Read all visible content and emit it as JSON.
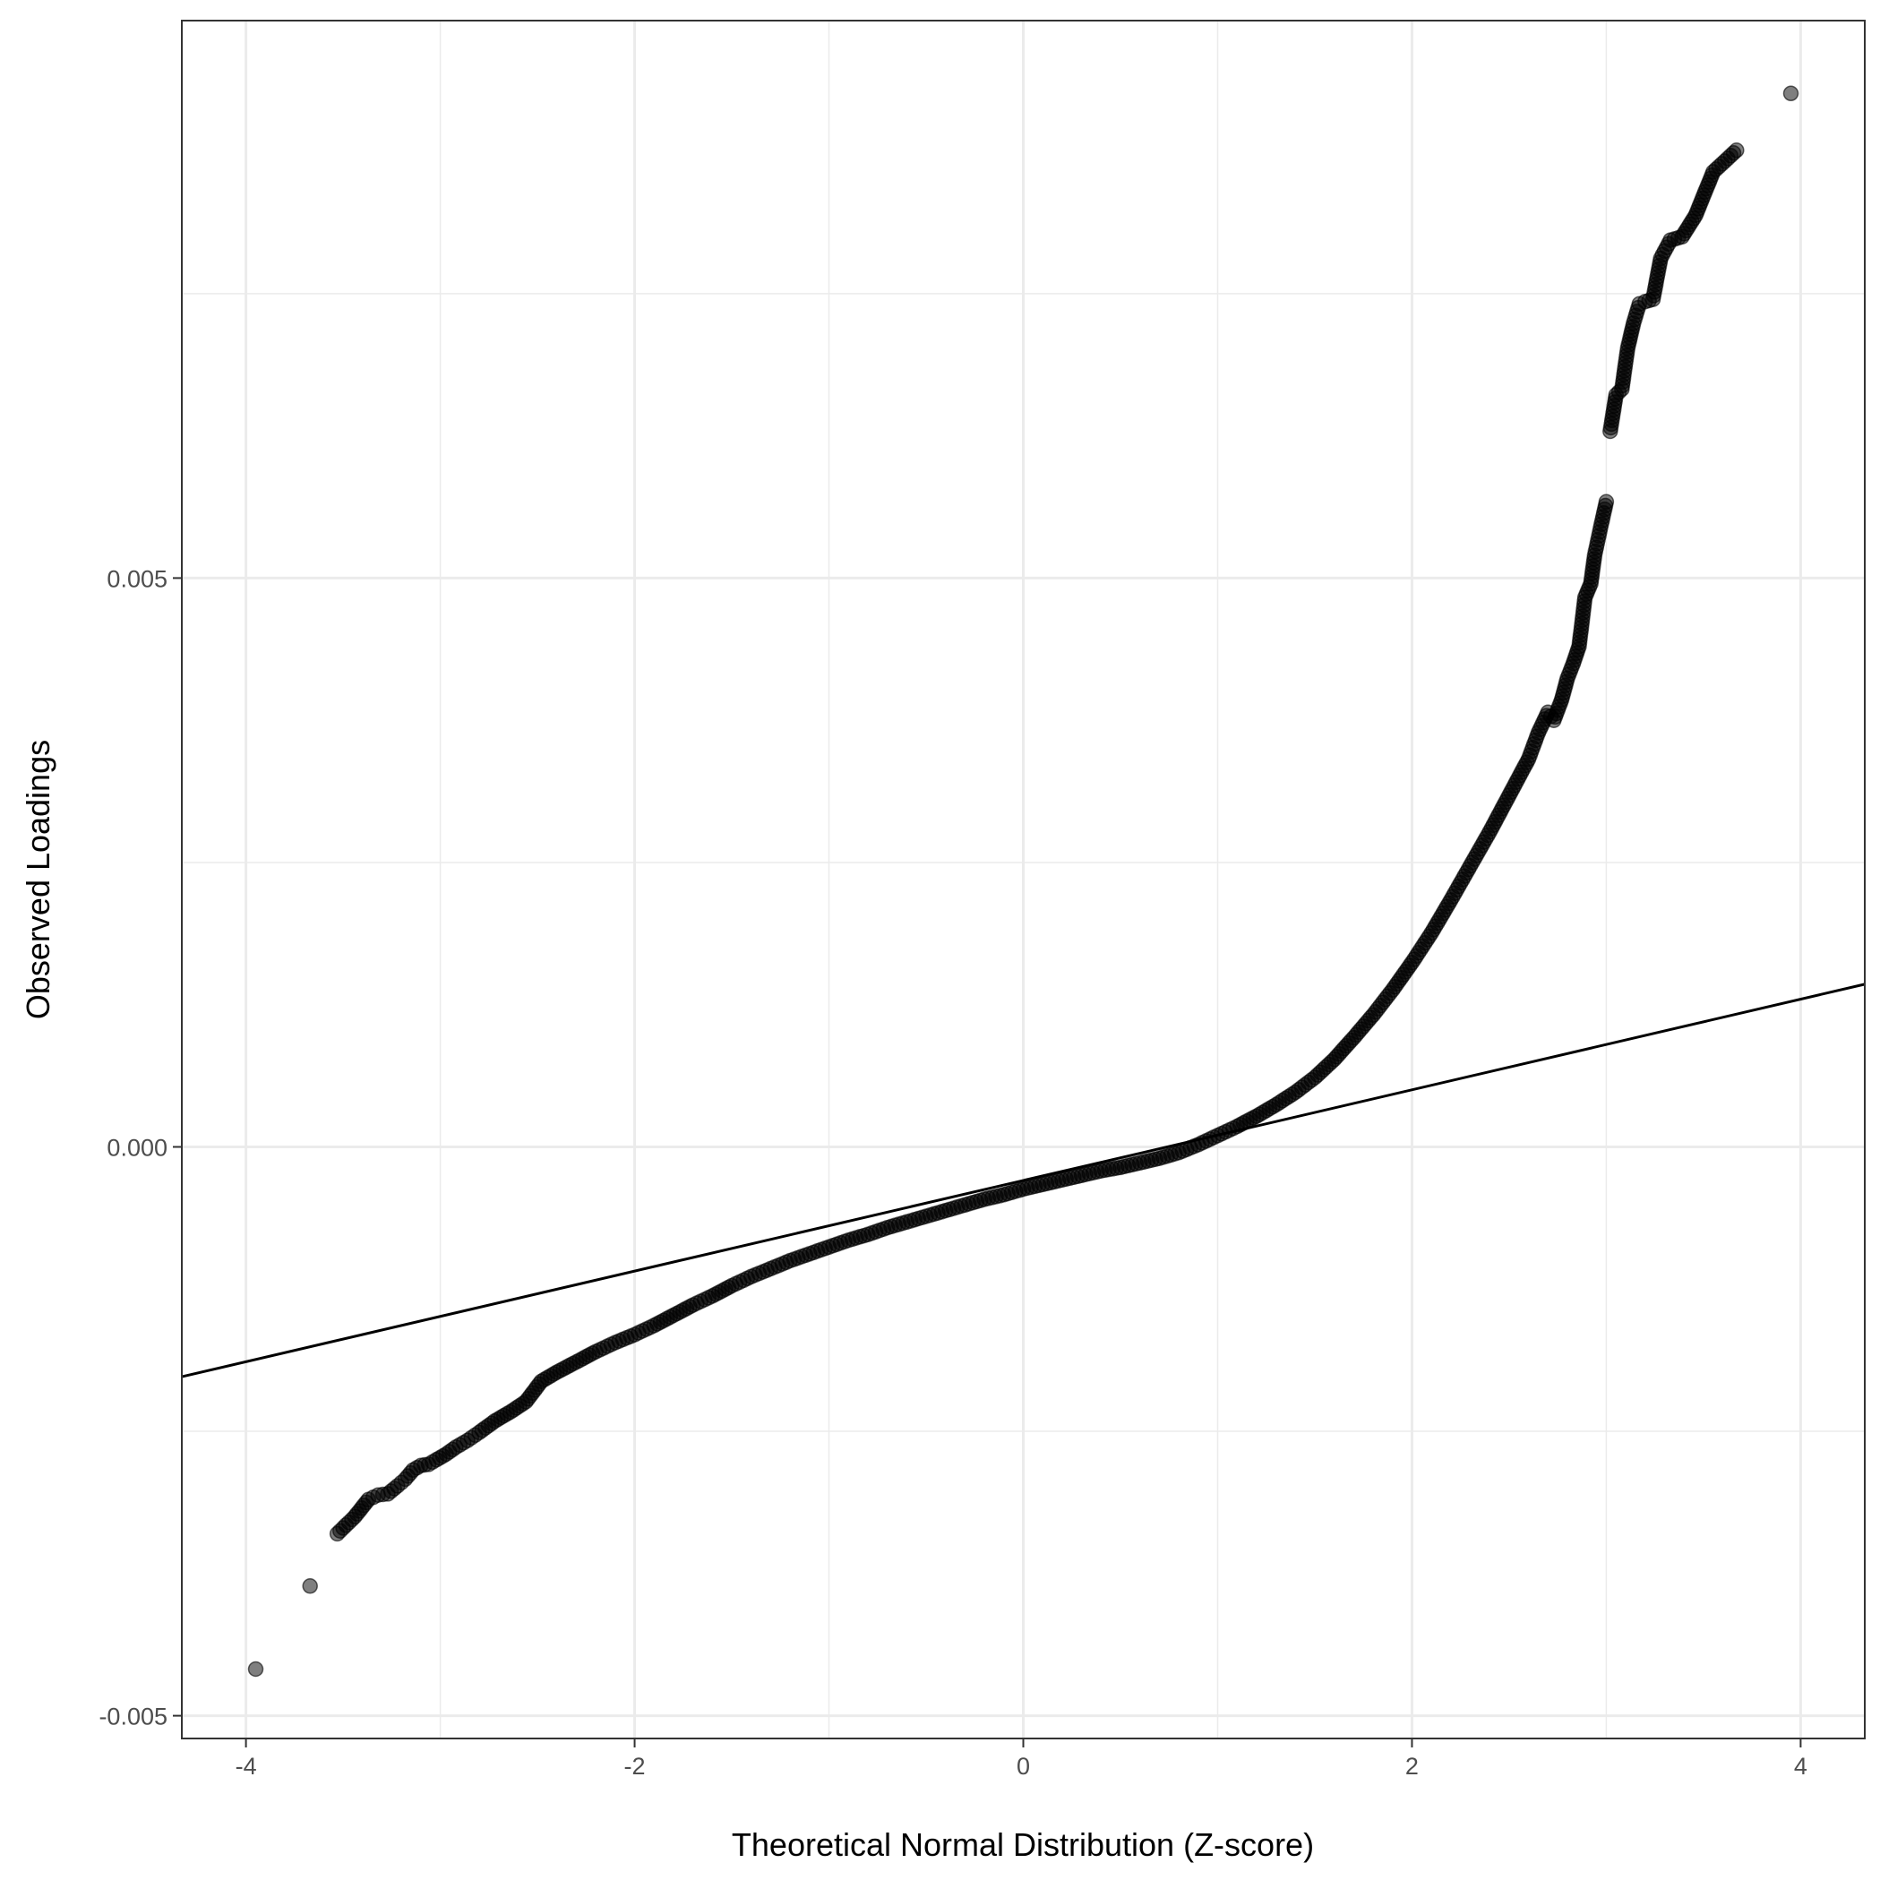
{
  "chart_data": {
    "type": "scatter",
    "title": "",
    "xlabel": "Theoretical Normal Distribution (Z-score)",
    "ylabel": "Observed Loadings",
    "xlim": [
      -4.33,
      4.33
    ],
    "ylim": [
      -0.0052,
      0.0099
    ],
    "x_ticks": [
      -4,
      -2,
      0,
      2,
      4
    ],
    "x_tick_labels": [
      "-4",
      "-2",
      "0",
      "2",
      "4"
    ],
    "y_ticks": [
      -0.005,
      0.0,
      0.005
    ],
    "y_tick_labels": [
      "-0.005",
      "0.000",
      "0.005"
    ],
    "x_minor_gridlines": [
      -3,
      -1,
      1,
      3
    ],
    "y_minor_gridlines": [
      -0.0025,
      0.0025,
      0.0075
    ],
    "grid": true,
    "theme": "bw",
    "point_color": "#000000",
    "point_alpha": 0.5,
    "reference_line": {
      "x": [
        -4.33,
        4.33
      ],
      "y": [
        -0.00202,
        0.00143
      ],
      "color": "#000000"
    },
    "series": [
      {
        "points": [
          [
            -3.95,
            -0.00459
          ],
          [
            -3.67,
            -0.00386
          ],
          [
            -3.53,
            -0.0034
          ],
          [
            -3.44,
            -0.00325
          ],
          [
            -3.37,
            -0.0031
          ],
          [
            -3.32,
            -0.00306
          ],
          [
            -3.27,
            -0.00305
          ],
          [
            -3.22,
            -0.00298
          ],
          [
            -3.18,
            -0.00292
          ],
          [
            -3.14,
            -0.00284
          ],
          [
            -3.1,
            -0.0028
          ],
          [
            -3.06,
            -0.00279
          ],
          [
            -3.02,
            -0.00275
          ],
          [
            -2.97,
            -0.0027
          ],
          [
            -2.92,
            -0.00264
          ],
          [
            -2.86,
            -0.00258
          ],
          [
            -2.8,
            -0.00251
          ],
          [
            -2.72,
            -0.00241
          ],
          [
            -2.64,
            -0.00233
          ],
          [
            -2.56,
            -0.00224
          ],
          [
            -2.48,
            -0.00206
          ],
          [
            -2.4,
            -0.00198
          ],
          [
            -2.3,
            -0.00189
          ],
          [
            -2.2,
            -0.0018
          ],
          [
            -2.1,
            -0.00172
          ],
          [
            -2.0,
            -0.00165
          ],
          [
            -1.9,
            -0.00157
          ],
          [
            -1.8,
            -0.00148
          ],
          [
            -1.7,
            -0.00139
          ],
          [
            -1.6,
            -0.00131
          ],
          [
            -1.5,
            -0.00122
          ],
          [
            -1.4,
            -0.00114
          ],
          [
            -1.3,
            -0.00107
          ],
          [
            -1.2,
            -0.001
          ],
          [
            -1.1,
            -0.00094
          ],
          [
            -1.0,
            -0.00088
          ],
          [
            -0.9,
            -0.00082
          ],
          [
            -0.8,
            -0.00077
          ],
          [
            -0.7,
            -0.00071
          ],
          [
            -0.6,
            -0.00066
          ],
          [
            -0.5,
            -0.00061
          ],
          [
            -0.4,
            -0.00056
          ],
          [
            -0.3,
            -0.00051
          ],
          [
            -0.2,
            -0.00046
          ],
          [
            -0.1,
            -0.00042
          ],
          [
            0.0,
            -0.00037
          ],
          [
            0.1,
            -0.00033
          ],
          [
            0.2,
            -0.00029
          ],
          [
            0.3,
            -0.00025
          ],
          [
            0.4,
            -0.00021
          ],
          [
            0.5,
            -0.00018
          ],
          [
            0.6,
            -0.00014
          ],
          [
            0.7,
            -0.0001
          ],
          [
            0.8,
            -5e-05
          ],
          [
            0.9,
            2e-05
          ],
          [
            1.0,
            0.0001
          ],
          [
            1.1,
            0.00018
          ],
          [
            1.2,
            0.00027
          ],
          [
            1.3,
            0.00037
          ],
          [
            1.4,
            0.00048
          ],
          [
            1.5,
            0.00061
          ],
          [
            1.6,
            0.00077
          ],
          [
            1.7,
            0.00096
          ],
          [
            1.8,
            0.00116
          ],
          [
            1.9,
            0.00138
          ],
          [
            2.0,
            0.00162
          ],
          [
            2.1,
            0.00188
          ],
          [
            2.2,
            0.00217
          ],
          [
            2.3,
            0.00247
          ],
          [
            2.4,
            0.00277
          ],
          [
            2.5,
            0.00309
          ],
          [
            2.6,
            0.00341
          ],
          [
            2.65,
            0.00364
          ],
          [
            2.7,
            0.00382
          ],
          [
            2.73,
            0.00375
          ],
          [
            2.77,
            0.00393
          ],
          [
            2.8,
            0.00412
          ],
          [
            2.83,
            0.00425
          ],
          [
            2.86,
            0.0044
          ],
          [
            2.89,
            0.00483
          ],
          [
            2.92,
            0.00495
          ],
          [
            2.94,
            0.0052
          ],
          [
            2.97,
            0.00544
          ],
          [
            3.0,
            0.00567
          ],
          [
            3.02,
            0.00629
          ],
          [
            3.05,
            0.00661
          ],
          [
            3.08,
            0.00666
          ],
          [
            3.11,
            0.00702
          ],
          [
            3.14,
            0.00724
          ],
          [
            3.17,
            0.00741
          ],
          [
            3.2,
            0.00743
          ],
          [
            3.24,
            0.00745
          ],
          [
            3.28,
            0.00781
          ],
          [
            3.33,
            0.00797
          ],
          [
            3.39,
            0.008
          ],
          [
            3.46,
            0.00819
          ],
          [
            3.55,
            0.00857
          ],
          [
            3.67,
            0.00876
          ],
          [
            3.95,
            0.00926
          ]
        ]
      }
    ]
  }
}
